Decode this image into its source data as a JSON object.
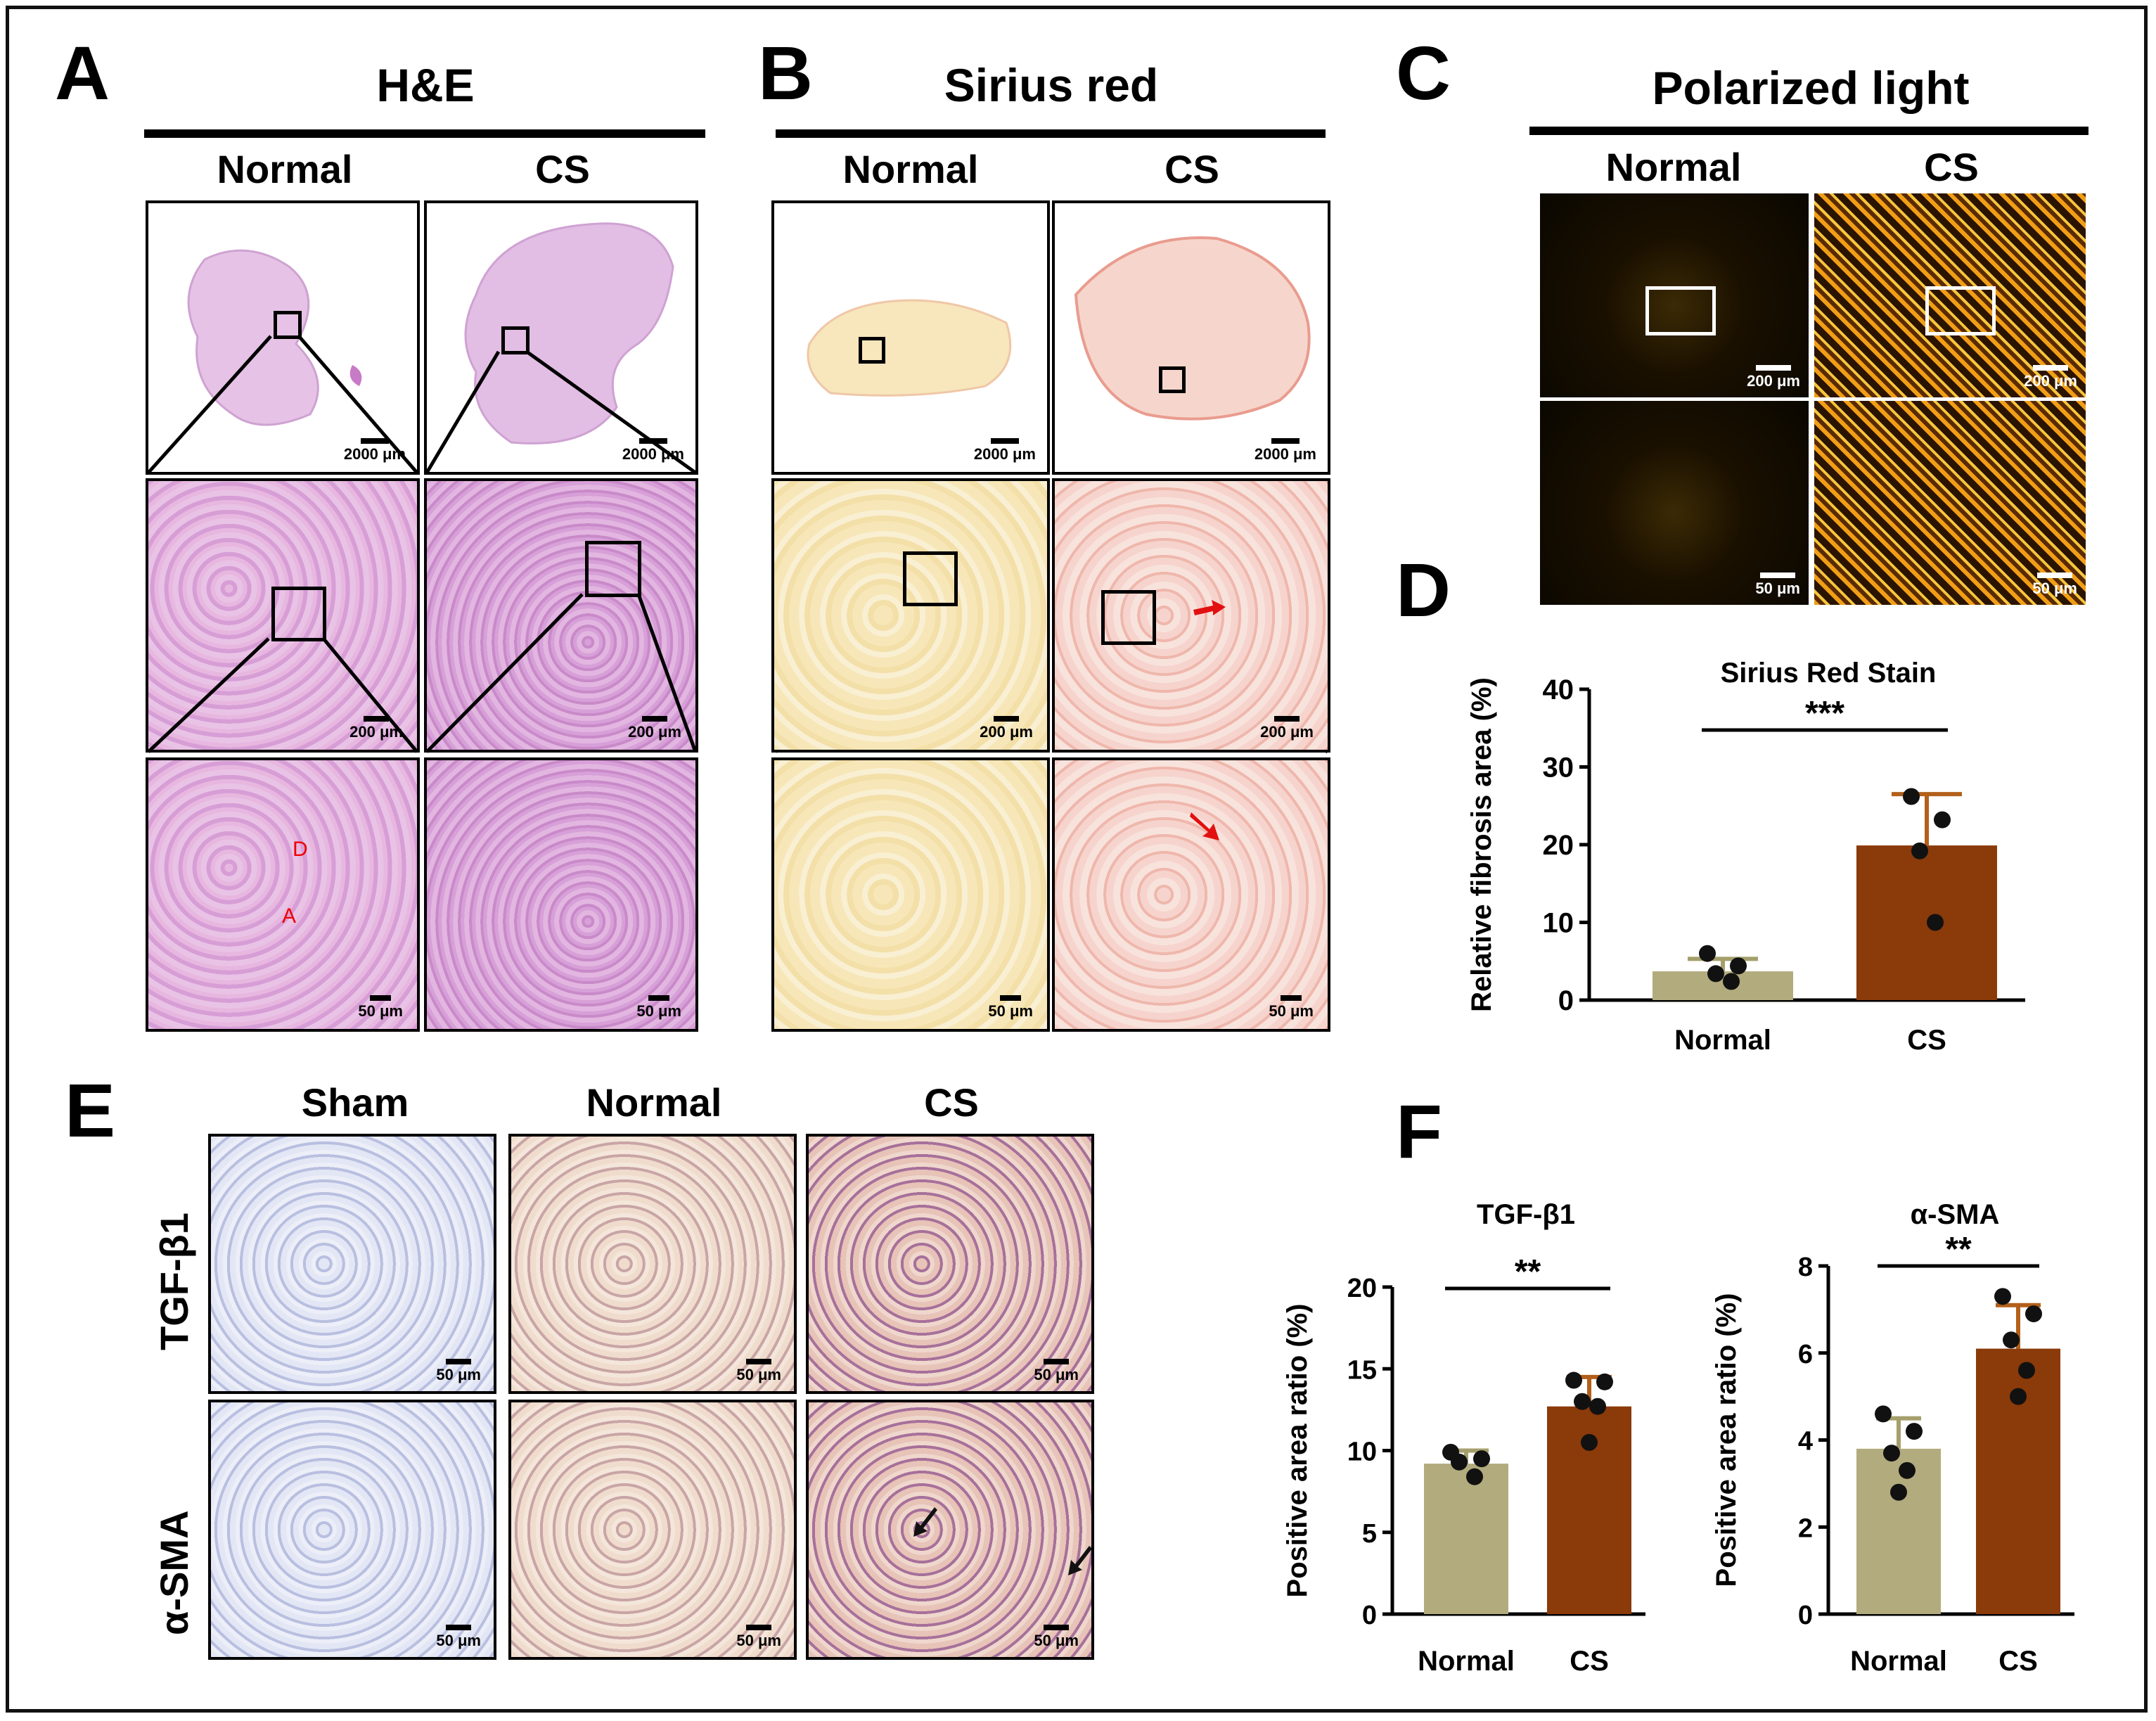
{
  "panels": {
    "A": {
      "letter": "A",
      "title": "H&E",
      "cols": [
        "Normal",
        "CS"
      ],
      "scales": [
        "2000 μm",
        "2000 μm",
        "200 μm",
        "200 μm",
        "50 μm",
        "50 μm"
      ],
      "annotations": [
        "D",
        "A"
      ]
    },
    "B": {
      "letter": "B",
      "title": "Sirius red",
      "cols": [
        "Normal",
        "CS"
      ],
      "scales": [
        "2000 μm",
        "2000 μm",
        "200 μm",
        "200 μm",
        "50 μm",
        "50 μm"
      ]
    },
    "C": {
      "letter": "C",
      "title": "Polarized light",
      "cols": [
        "Normal",
        "CS"
      ],
      "scales": [
        "200 μm",
        "200 μm",
        "50 μm",
        "50 μm"
      ]
    },
    "D": {
      "letter": "D"
    },
    "E": {
      "letter": "E",
      "cols": [
        "Sham",
        "Normal",
        "CS"
      ],
      "rows": [
        "TGF-β1",
        "α-SMA"
      ],
      "scale": "50 μm"
    },
    "F": {
      "letter": "F"
    }
  },
  "colors": {
    "normal": "#b2ab7d",
    "cs": "#8b3a0a",
    "errorbar": "#b2601a"
  },
  "chart_data": [
    {
      "id": "D",
      "type": "bar",
      "title": "Sirius Red Stain",
      "xlabel": "",
      "ylabel": "Relative fibrosis area (%)",
      "categories": [
        "Normal",
        "CS"
      ],
      "values": [
        3.7,
        19.9
      ],
      "errors": [
        1.6,
        6.6
      ],
      "points": [
        [
          6.0,
          4.4,
          3.4,
          2.4
        ],
        [
          26.2,
          23.2,
          19.2,
          10.0
        ]
      ],
      "ylim": [
        0,
        40
      ],
      "yticks": [
        0,
        10,
        20,
        30,
        40
      ],
      "significance": "***"
    },
    {
      "id": "F1",
      "type": "bar",
      "title": "TGF-β1",
      "xlabel": "",
      "ylabel": "Positive area ratio (%)",
      "categories": [
        "Normal",
        "CS"
      ],
      "values": [
        9.2,
        12.7
      ],
      "errors": [
        0.8,
        1.8
      ],
      "points": [
        [
          9.9,
          9.5,
          9.3,
          8.4
        ],
        [
          14.3,
          14.2,
          13.0,
          12.7,
          10.5
        ]
      ],
      "ylim": [
        0,
        20
      ],
      "yticks": [
        0,
        5,
        10,
        15,
        20
      ],
      "significance": "**"
    },
    {
      "id": "F2",
      "type": "bar",
      "title": "α-SMA",
      "xlabel": "",
      "ylabel": "Positive area ratio (%)",
      "categories": [
        "Normal",
        "CS"
      ],
      "values": [
        3.8,
        6.1
      ],
      "errors": [
        0.7,
        1.0
      ],
      "points": [
        [
          4.6,
          4.2,
          3.7,
          3.3,
          2.8
        ],
        [
          7.3,
          6.9,
          6.3,
          5.6,
          5.0
        ]
      ],
      "ylim": [
        0,
        8
      ],
      "yticks": [
        0,
        2,
        4,
        6,
        8
      ],
      "significance": "**"
    }
  ]
}
